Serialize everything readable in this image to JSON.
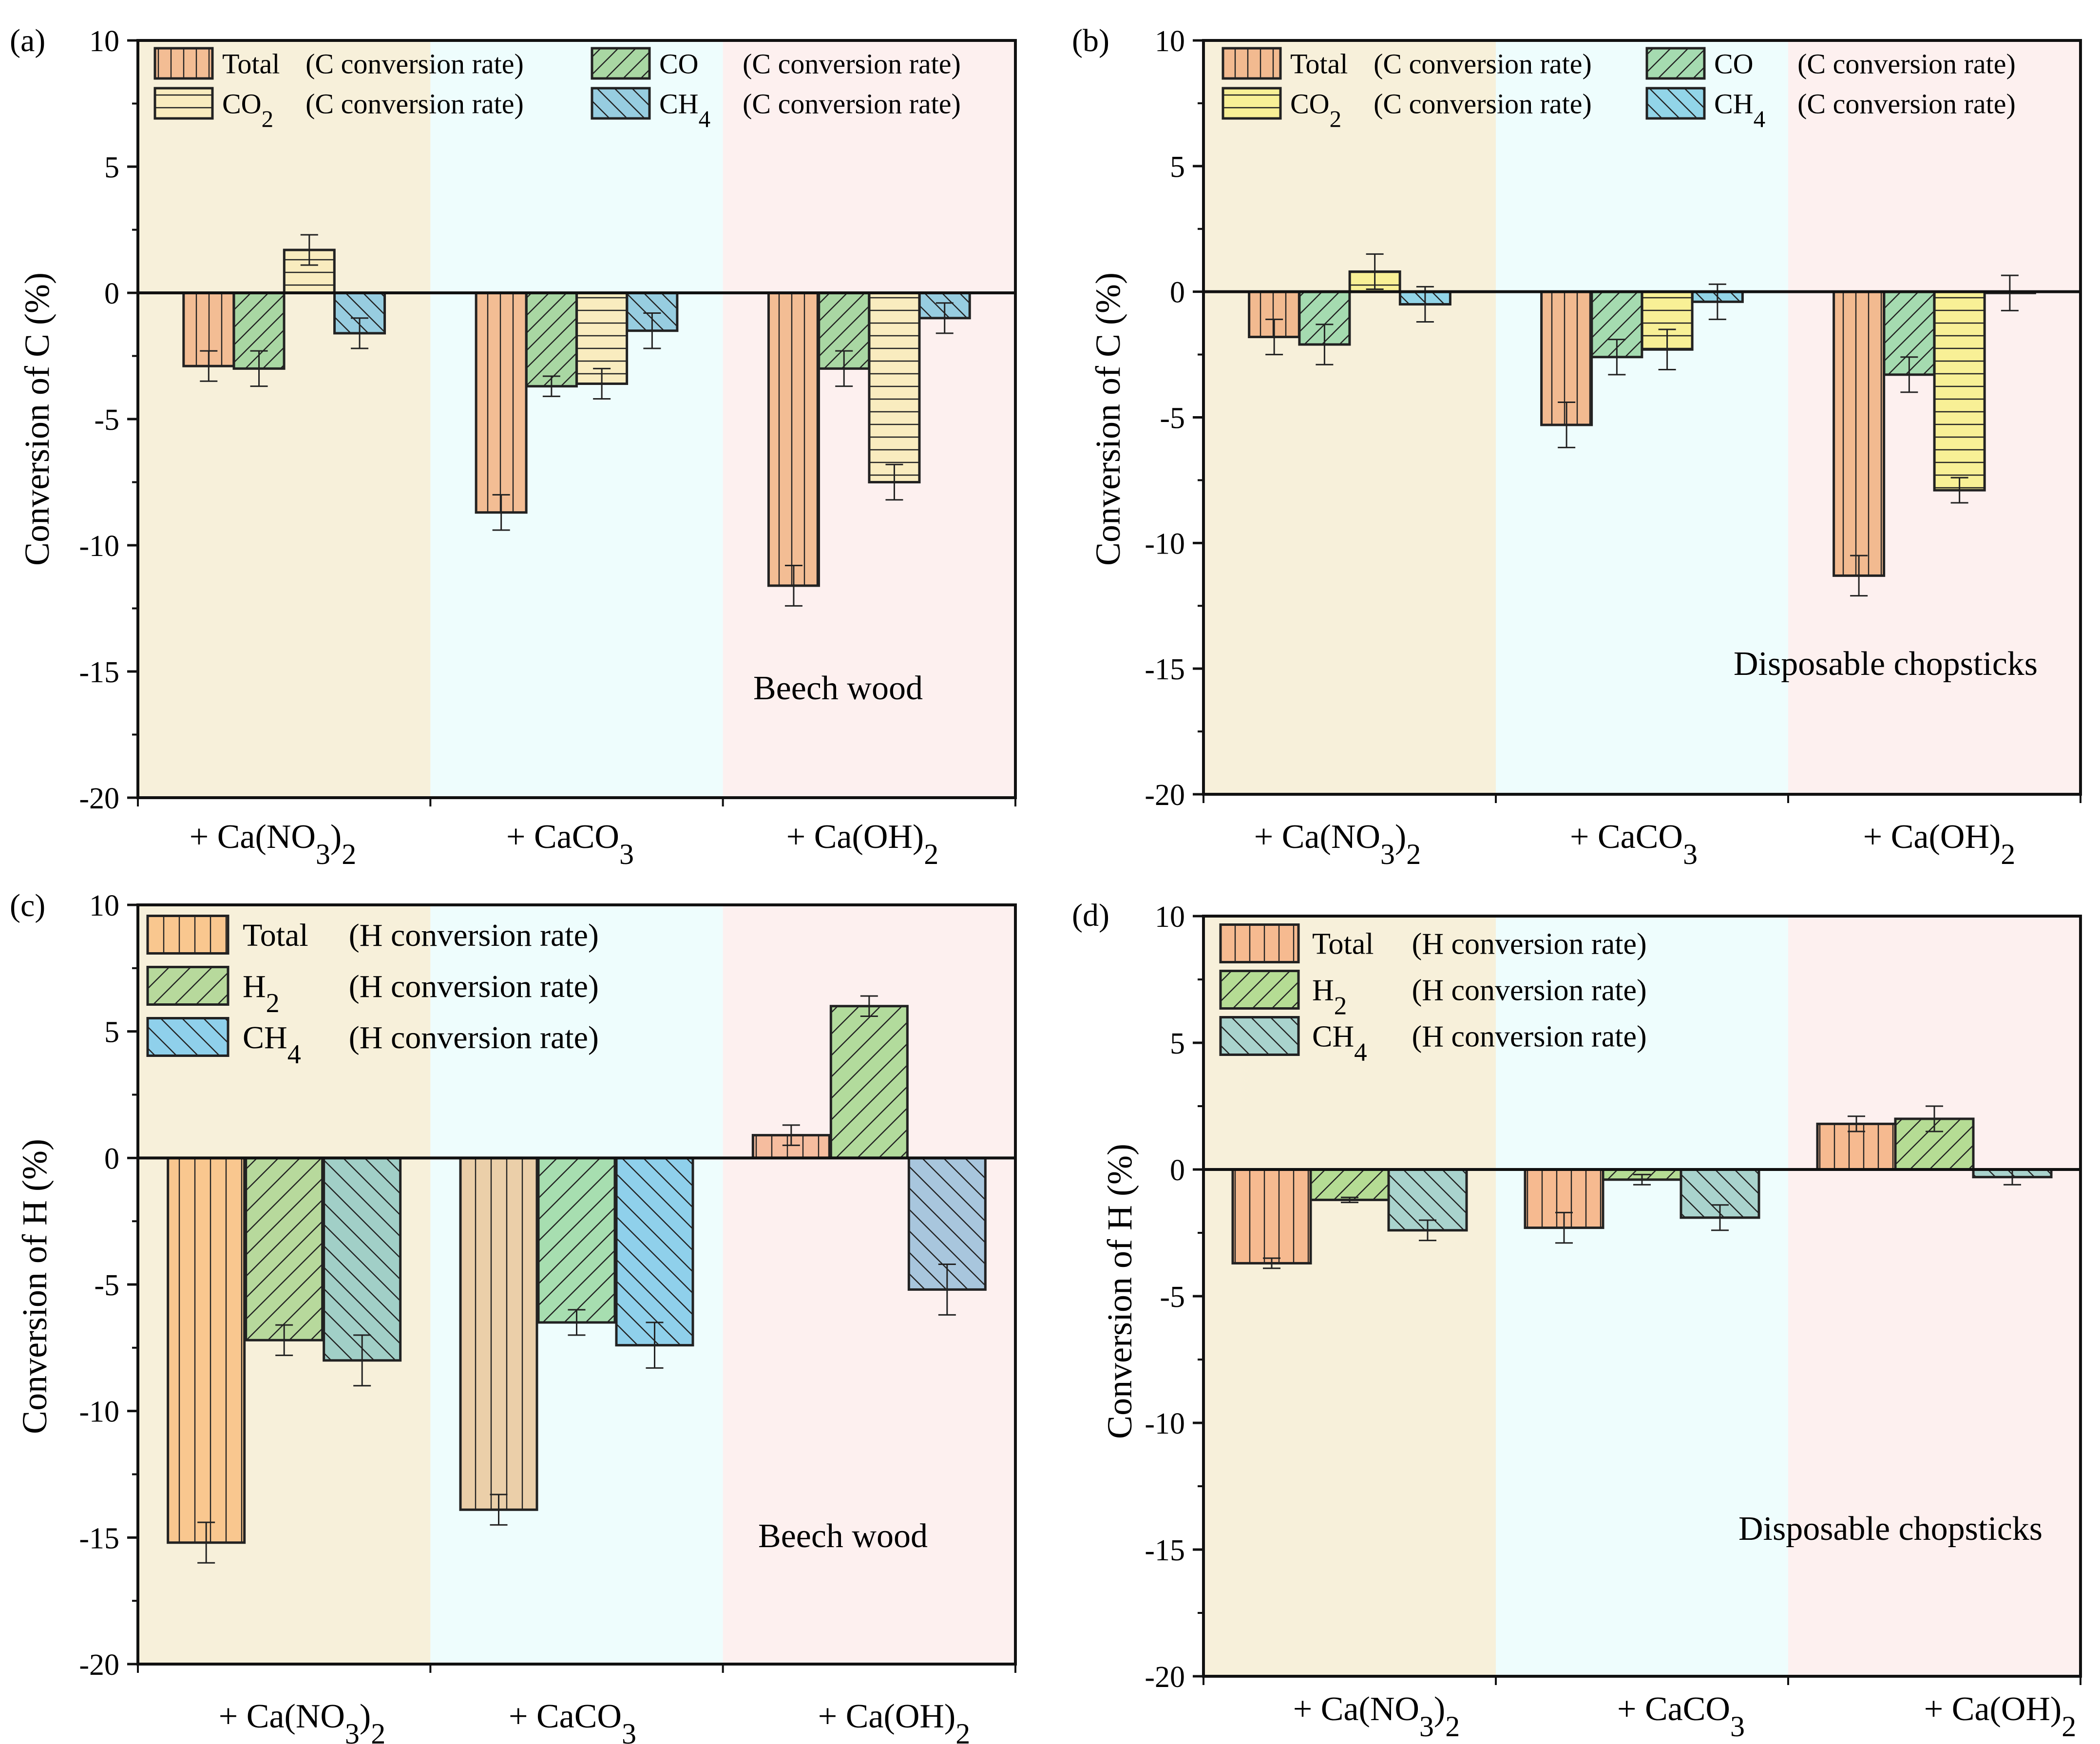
{
  "figure": {
    "category_labels_c": [
      "+ Ca(NO3)2",
      "+ CaCO3",
      "+ Ca(OH)2"
    ],
    "category_labels_h": [
      "+ Ca(NO3)2",
      "+ CaCO3",
      "+ Ca(OH)2"
    ]
  },
  "colors": {
    "region_no3": "#f7f0da",
    "region_co3": "#eefdfd",
    "region_oh": "#fdf0ef",
    "beech_total": "#f3bd94",
    "beech_co": "#a9d7a3",
    "beech_co2": "#f9ecbf",
    "beech_ch4": "#97cde0",
    "chop_total": "#f2ba90",
    "chop_co": "#a5dbb0",
    "chop_co2": "#f8f096",
    "chop_ch4": "#92d5e8",
    "h_total_1": "#f9c78f",
    "h_total_2": "#ebcfa9",
    "h_total_3": "#f6bd9f",
    "h_h2_1": "#b7d99c",
    "h_h2_2": "#a7deb0",
    "h_h2_3": "#b2db9c",
    "h_ch4_1": "#a1cfc7",
    "h_ch4_2": "#8fd0eb",
    "h_ch4_3": "#a8c6dd",
    "d_total": "#f6ba90",
    "d_h2": "#b5dc94",
    "d_ch4": "#a9d3cd"
  },
  "chart_data": [
    {
      "panel": "(a)",
      "type": "bar",
      "ylabel": "Conversion of C (%)",
      "ylim": [
        -20,
        10
      ],
      "yticks": [
        -20,
        -15,
        -10,
        -5,
        0,
        5,
        10
      ],
      "categories": [
        "+ Ca(NO3)2",
        "+ CaCO3",
        "+ Ca(OH)2"
      ],
      "annotation": "Beech wood",
      "legend": [
        {
          "name": "Total",
          "suffix": "(C conversion  rate)"
        },
        {
          "name": "CO",
          "suffix": "(C conversion  rate)"
        },
        {
          "name": "CO2",
          "suffix": "(C conversion  rate)"
        },
        {
          "name": "CH4",
          "suffix": "(C conversion rate)"
        }
      ],
      "series": [
        {
          "name": "Total",
          "values": [
            -2.9,
            -8.7,
            -11.6
          ],
          "errors": [
            0.6,
            0.7,
            0.8
          ]
        },
        {
          "name": "CO",
          "values": [
            -3.0,
            -3.7,
            -3.0
          ],
          "errors": [
            0.7,
            0.4,
            0.7
          ]
        },
        {
          "name": "CO2",
          "values": [
            1.7,
            -3.6,
            -7.5
          ],
          "errors": [
            0.6,
            0.6,
            0.7
          ]
        },
        {
          "name": "CH4",
          "values": [
            -1.6,
            -1.5,
            -1.0
          ],
          "errors": [
            0.6,
            0.7,
            0.6
          ]
        }
      ]
    },
    {
      "panel": "(b)",
      "type": "bar",
      "ylabel": "Conversion of C (%)",
      "ylim": [
        -20,
        10
      ],
      "yticks": [
        -20,
        -15,
        -10,
        -5,
        0,
        5,
        10
      ],
      "categories": [
        "+ Ca(NO3)2",
        "+ CaCO3",
        "+ Ca(OH)2"
      ],
      "annotation": "Disposable chopsticks",
      "legend": [
        {
          "name": "Total",
          "suffix": "(C conversion rate)"
        },
        {
          "name": "CO",
          "suffix": "(C conversion rate)"
        },
        {
          "name": "CO2",
          "suffix": "(C conversion rate)"
        },
        {
          "name": "CH4",
          "suffix": "(C conversion rate)"
        }
      ],
      "series": [
        {
          "name": "Total",
          "values": [
            -1.8,
            -5.3,
            -11.3
          ],
          "errors": [
            0.7,
            0.9,
            0.8
          ]
        },
        {
          "name": "CO",
          "values": [
            -2.1,
            -2.6,
            -3.3
          ],
          "errors": [
            0.8,
            0.7,
            0.7
          ]
        },
        {
          "name": "CO2",
          "values": [
            0.8,
            -2.3,
            -7.9
          ],
          "errors": [
            0.7,
            0.8,
            0.5
          ]
        },
        {
          "name": "CH4",
          "values": [
            -0.5,
            -0.4,
            -0.05
          ],
          "errors": [
            0.7,
            0.7,
            0.7
          ]
        }
      ]
    },
    {
      "panel": "(c)",
      "type": "bar",
      "ylabel": "Conversion of H (%)",
      "ylim": [
        -20,
        10
      ],
      "yticks": [
        -20,
        -15,
        -10,
        -5,
        0,
        5,
        10
      ],
      "categories": [
        "+ Ca(NO3)2",
        "+ CaCO3",
        "+ Ca(OH)2"
      ],
      "annotation": "Beech wood",
      "legend": [
        {
          "name": "Total",
          "suffix": "(H conversion rate)"
        },
        {
          "name": "H2",
          "suffix": "(H conversion rate)"
        },
        {
          "name": "CH4",
          "suffix": "(H conversion rate)"
        }
      ],
      "series": [
        {
          "name": "Total",
          "values": [
            -15.2,
            -13.9,
            0.9
          ],
          "errors": [
            0.8,
            0.6,
            0.4
          ]
        },
        {
          "name": "H2",
          "values": [
            -7.2,
            -6.5,
            6.0
          ],
          "errors": [
            0.6,
            0.5,
            0.4
          ]
        },
        {
          "name": "CH4",
          "values": [
            -8.0,
            -7.4,
            -5.2
          ],
          "errors": [
            1.0,
            0.9,
            1.0
          ]
        }
      ]
    },
    {
      "panel": "(d)",
      "type": "bar",
      "ylabel": "Conversion of H (%)",
      "ylim": [
        -20,
        10
      ],
      "yticks": [
        -20,
        -15,
        -10,
        -5,
        0,
        5,
        10
      ],
      "categories": [
        "+ Ca(NO3)2",
        "+ CaCO3",
        "+ Ca(OH)2"
      ],
      "annotation": "Disposable chopsticks",
      "legend": [
        {
          "name": "Total",
          "suffix": "(H conversion rate)"
        },
        {
          "name": "H2",
          "suffix": "(H conversion rate)"
        },
        {
          "name": "CH4",
          "suffix": "(H conversion rate)"
        }
      ],
      "series": [
        {
          "name": "Total",
          "values": [
            -3.7,
            -2.3,
            1.8
          ],
          "errors": [
            0.2,
            0.6,
            0.3
          ]
        },
        {
          "name": "H2",
          "values": [
            -1.2,
            -0.4,
            2.0
          ],
          "errors": [
            0.1,
            0.2,
            0.5
          ]
        },
        {
          "name": "CH4",
          "values": [
            -2.4,
            -1.9,
            -0.3
          ],
          "errors": [
            0.4,
            0.5,
            0.3
          ]
        }
      ]
    }
  ]
}
